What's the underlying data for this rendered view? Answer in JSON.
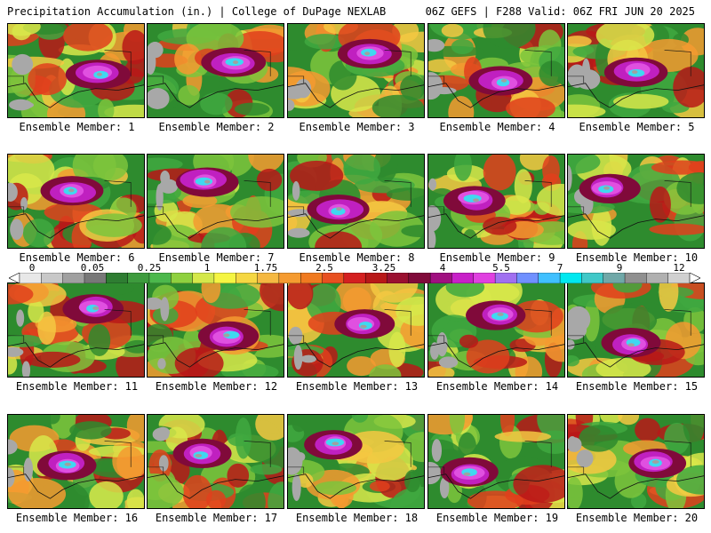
{
  "header": {
    "title_left": "Precipitation Accumulation (in.) | College of DuPage NEXLAB",
    "title_right": "06Z GEFS | F288 Valid: 06Z FRI JUN 20 2025"
  },
  "members": [
    {
      "label": "Ensemble Member: 1"
    },
    {
      "label": "Ensemble Member: 2"
    },
    {
      "label": "Ensemble Member: 3"
    },
    {
      "label": "Ensemble Member: 4"
    },
    {
      "label": "Ensemble Member: 5"
    },
    {
      "label": "Ensemble Member: 6"
    },
    {
      "label": "Ensemble Member: 7"
    },
    {
      "label": "Ensemble Member: 8"
    },
    {
      "label": "Ensemble Member: 9"
    },
    {
      "label": "Ensemble Member: 10"
    },
    {
      "label": "Ensemble Member: 11"
    },
    {
      "label": "Ensemble Member: 12"
    },
    {
      "label": "Ensemble Member: 13"
    },
    {
      "label": "Ensemble Member: 14"
    },
    {
      "label": "Ensemble Member: 15"
    },
    {
      "label": "Ensemble Member: 16"
    },
    {
      "label": "Ensemble Member: 17"
    },
    {
      "label": "Ensemble Member: 18"
    },
    {
      "label": "Ensemble Member: 19"
    },
    {
      "label": "Ensemble Member: 20"
    }
  ],
  "colorbar": {
    "labels": [
      "0",
      "0.05",
      "0.25",
      "1",
      "1.75",
      "2.5",
      "3.25",
      "4",
      "5.5",
      "7",
      "9",
      "12"
    ],
    "colors": [
      "#e8e8e8",
      "#c8c8c8",
      "#a0a0a0",
      "#787878",
      "#2e7d32",
      "#3d9b3d",
      "#4cb84c",
      "#8fd13f",
      "#d4e84a",
      "#f5f542",
      "#f5d742",
      "#f5b942",
      "#f59b30",
      "#f07a20",
      "#e85020",
      "#d42020",
      "#b81818",
      "#9a1030",
      "#800a3a",
      "#a01080",
      "#c820c8",
      "#e040e0",
      "#a070f0",
      "#7090ff",
      "#40c0ff",
      "#00e8f0",
      "#40c8c8",
      "#70a8a8",
      "#909090",
      "#b0b0b0",
      "#d0d0d0"
    ]
  }
}
